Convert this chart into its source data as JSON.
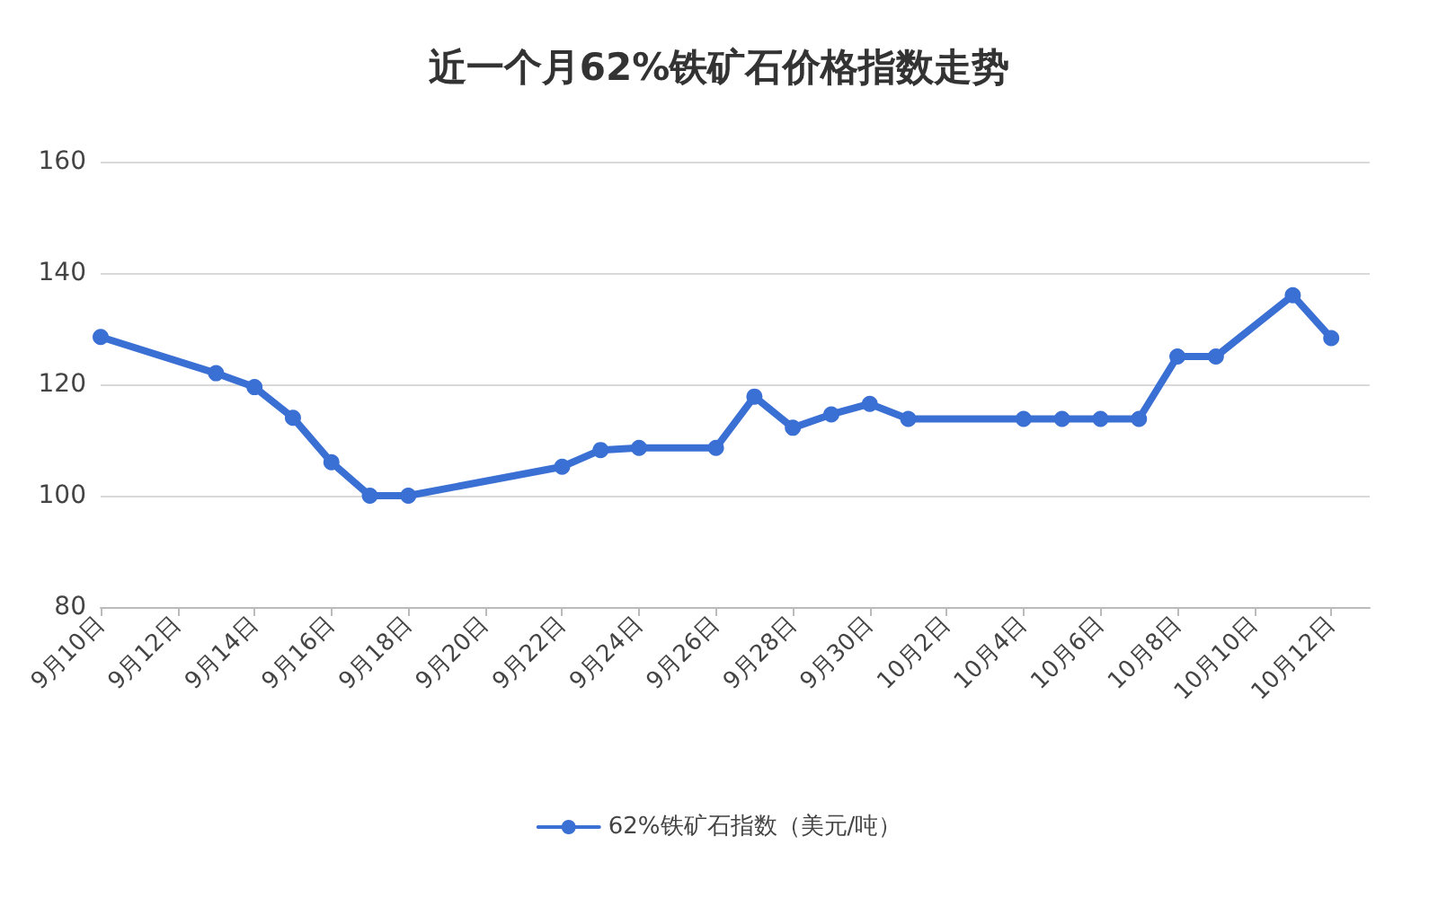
{
  "chart_data": {
    "type": "line",
    "title": "近一个月62%铁矿石价格指数走势",
    "x": [
      "--09-10",
      "--09-13",
      "--09-14",
      "--09-15",
      "--09-16",
      "--09-17",
      "--09-18",
      "--09-22",
      "--09-23",
      "--09-24",
      "--09-26",
      "--09-27",
      "--09-28",
      "--09-29",
      "--09-30",
      "--10-01",
      "--10-04",
      "--10-05",
      "--10-06",
      "--10-07",
      "--10-08",
      "--10-09",
      "--10-11",
      "--10-12"
    ],
    "series": [
      {
        "name": "62%铁矿石指数（美元/吨）",
        "color": "#3a6fd4",
        "values": [
          128.5,
          122,
          119.5,
          114,
          106,
          100,
          100,
          105.2,
          108.2,
          108.6,
          108.6,
          117.8,
          112.2,
          114.6,
          116.5,
          113.8,
          113.8,
          113.8,
          113.8,
          113.8,
          125,
          125,
          136,
          128.3
        ]
      }
    ],
    "xlim": [
      "--09-10",
      "--10-13"
    ],
    "xticks": [
      {
        "value": "--09-10",
        "label": "9月10日"
      },
      {
        "value": "--09-12",
        "label": "9月12日"
      },
      {
        "value": "--09-14",
        "label": "9月14日"
      },
      {
        "value": "--09-16",
        "label": "9月16日"
      },
      {
        "value": "--09-18",
        "label": "9月18日"
      },
      {
        "value": "--09-20",
        "label": "9月20日"
      },
      {
        "value": "--09-22",
        "label": "9月22日"
      },
      {
        "value": "--09-24",
        "label": "9月24日"
      },
      {
        "value": "--09-26",
        "label": "9月26日"
      },
      {
        "value": "--09-28",
        "label": "9月28日"
      },
      {
        "value": "--09-30",
        "label": "9月30日"
      },
      {
        "value": "--10-02",
        "label": "10月2日"
      },
      {
        "value": "--10-04",
        "label": "10月4日"
      },
      {
        "value": "--10-06",
        "label": "10月6日"
      },
      {
        "value": "--10-08",
        "label": "10月8日"
      },
      {
        "value": "--10-10",
        "label": "10月10日"
      },
      {
        "value": "--10-12",
        "label": "10月12日"
      }
    ],
    "ylim": [
      80,
      160
    ],
    "yticks": [
      80,
      100,
      120,
      140,
      160
    ],
    "grid": "y",
    "legend": "bottom",
    "marker": "circle",
    "line_style": "solid"
  }
}
